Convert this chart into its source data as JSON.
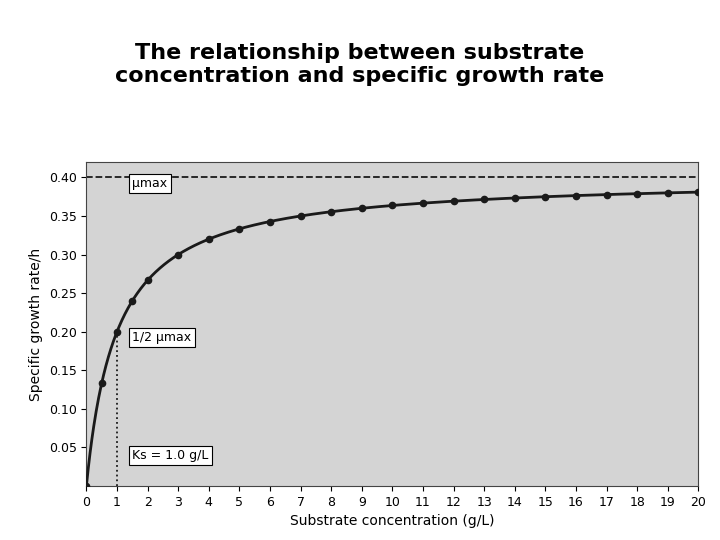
{
  "title_line1": "The relationship between substrate",
  "title_line2": "concentration and specific growth rate",
  "xlabel": "Substrate concentration (g/L)",
  "ylabel": "Specific growth rate/h",
  "mu_max": 0.4,
  "Ks": 1.0,
  "x_min": 0,
  "x_max": 20,
  "y_min": 0,
  "y_max": 0.42,
  "yticks": [
    0.05,
    0.1,
    0.15,
    0.2,
    0.25,
    0.3,
    0.35,
    0.4
  ],
  "xticks": [
    0,
    1,
    2,
    3,
    4,
    5,
    6,
    7,
    8,
    9,
    10,
    11,
    12,
    13,
    14,
    15,
    16,
    17,
    18,
    19,
    20
  ],
  "dot_x_values": [
    0.0,
    0.5,
    1.0,
    1.5,
    2.0,
    3.0,
    4.0,
    5.0,
    6.0,
    7.0,
    8.0,
    9.0,
    10.0,
    11.0,
    12.0,
    13.0,
    14.0,
    15.0,
    16.0,
    17.0,
    18.0,
    19.0,
    20.0
  ],
  "label_mu_max": "μmax",
  "label_half_mu": "1/2 μmax",
  "label_Ks": "Ks = 1.0 g/L",
  "line_color": "#1a1a1a",
  "background_color": "#d4d4d4",
  "fig_background": "#ffffff",
  "title_fontsize": 16,
  "axis_label_fontsize": 10,
  "tick_fontsize": 9,
  "annotation_fontsize": 9
}
